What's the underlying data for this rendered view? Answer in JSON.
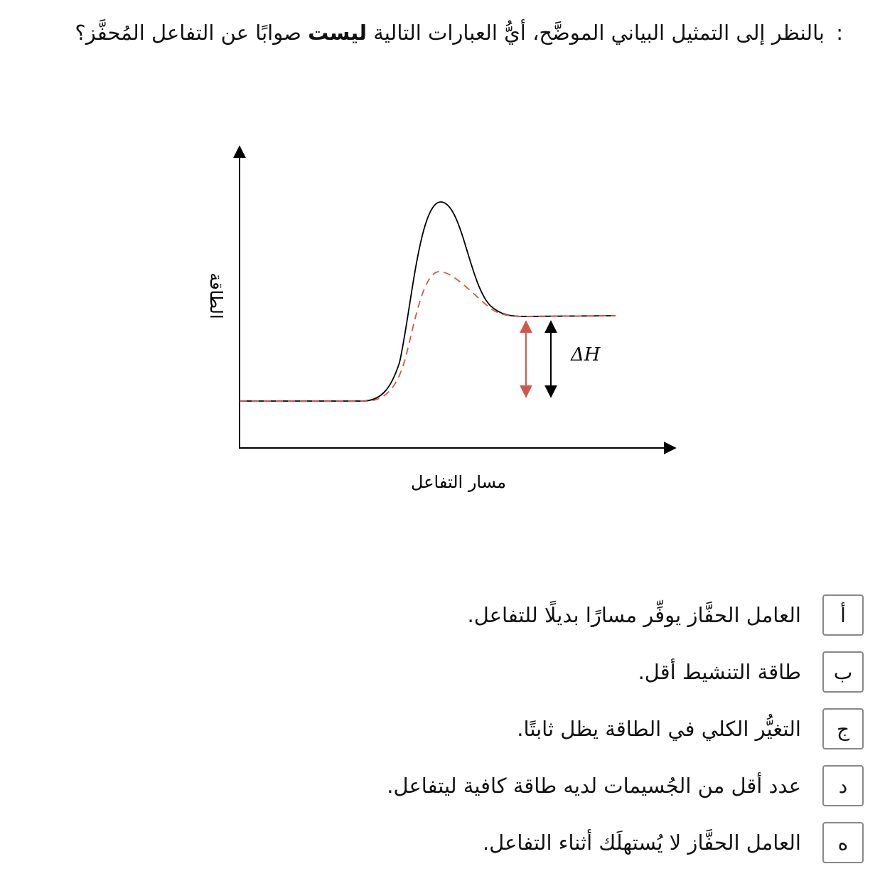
{
  "question": {
    "prefix": "بالنظر إلى التمثيل البياني الموضَّح، أيُّ العبارات التالية ",
    "emphasis": "ليست",
    "suffix": " صوابًا عن التفاعل المُحفَّز؟",
    "colon": ":"
  },
  "diagram": {
    "y_axis_label": "الطاقة",
    "x_axis_label": "مسار التفاعل",
    "delta_h_label": "ΔH",
    "colors": {
      "uncatalyzed": "#000000",
      "catalyzed": "#d0574a",
      "axes": "#000000"
    }
  },
  "options": [
    {
      "letter": "أ",
      "text": "العامل الحفَّاز يوفِّر مسارًا بديلًا للتفاعل."
    },
    {
      "letter": "ب",
      "text": "طاقة التنشيط أقل."
    },
    {
      "letter": "ج",
      "text": "التغيُّر الكلي في الطاقة يظل ثابتًا."
    },
    {
      "letter": "د",
      "text": "عدد أقل من الجُسيمات لديه طاقة كافية ليتفاعل."
    },
    {
      "letter": "ه",
      "text": "العامل الحفَّاز لا يُستهلَك أثناء التفاعل."
    }
  ]
}
